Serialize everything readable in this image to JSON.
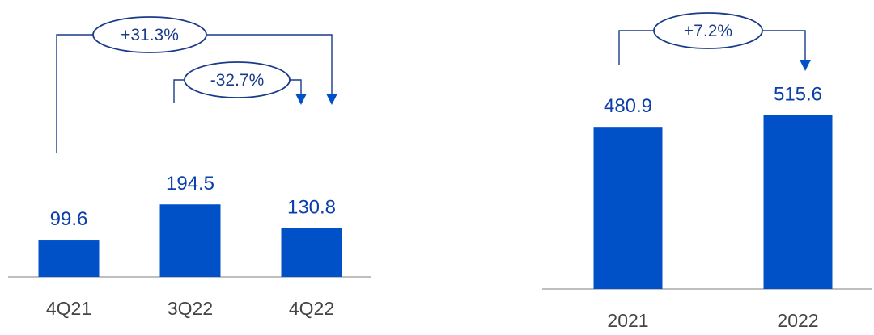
{
  "colors": {
    "bar": "#0050c8",
    "value_text": "#0a3ea8",
    "category_text": "#444444",
    "axis": "#999999",
    "annotation": "#1a3a8a"
  },
  "chart_data": [
    {
      "type": "bar",
      "title": "",
      "xlabel": "",
      "ylabel": "",
      "categories": [
        "4Q21",
        "3Q22",
        "4Q22"
      ],
      "values": [
        99.6,
        194.5,
        130.8
      ],
      "value_labels": [
        "99.6",
        "194.5",
        "130.8"
      ],
      "ylim": [
        0,
        220
      ],
      "grid": false,
      "annotations": [
        {
          "label": "+31.3%",
          "from": "4Q21",
          "to": "4Q22"
        },
        {
          "label": "-32.7%",
          "from": "3Q22",
          "to": "4Q22"
        }
      ]
    },
    {
      "type": "bar",
      "title": "",
      "xlabel": "",
      "ylabel": "",
      "categories": [
        "2021",
        "2022"
      ],
      "values": [
        480.9,
        515.6
      ],
      "value_labels": [
        "480.9",
        "515.6"
      ],
      "ylim": [
        0,
        600
      ],
      "grid": false,
      "annotations": [
        {
          "label": "+7.2%",
          "from": "2021",
          "to": "2022"
        }
      ]
    }
  ]
}
